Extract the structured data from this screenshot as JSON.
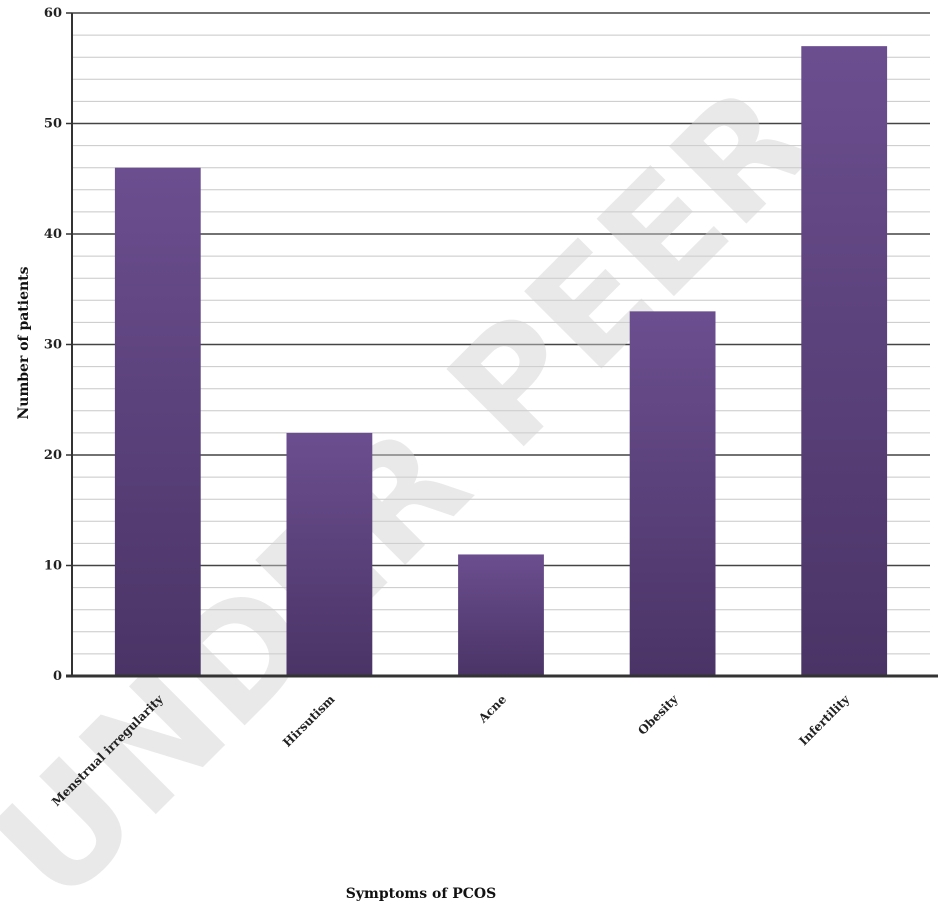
{
  "chart_data": {
    "type": "bar",
    "title": "",
    "xlabel": "Symptoms of PCOS",
    "ylabel": "Number of patients",
    "categories": [
      "Menstrual irregularity",
      "Hirsutism",
      "Acne",
      "Obesity",
      "Infertility"
    ],
    "values": [
      46,
      22,
      11,
      33,
      57
    ],
    "ylim": [
      0,
      60
    ],
    "yticks": [
      0,
      10,
      20,
      30,
      40,
      50,
      60
    ],
    "ytick_labels": [
      "0",
      "10",
      "20",
      "30",
      "40",
      "50",
      "60"
    ],
    "grid": true,
    "legend": "none",
    "colors": {
      "bar_top": "#6b4e8f",
      "bar_bottom": "#4a3466",
      "major_grid": "#444444",
      "minor_grid": "#c8c8c8",
      "axis": "#333333"
    }
  },
  "watermark": "UNDER PEER"
}
